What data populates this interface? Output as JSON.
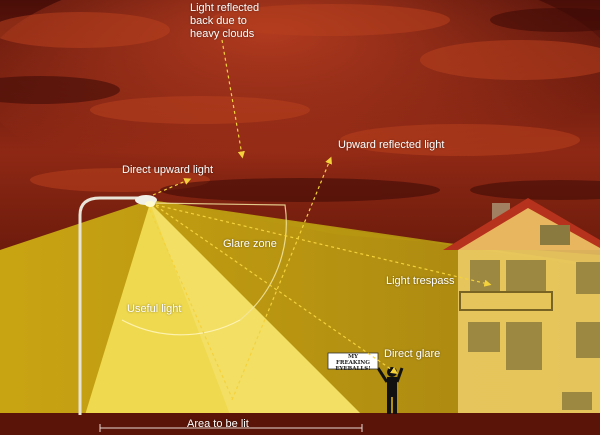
{
  "labels": {
    "reflected_back": "Light reflected\nback due to\nheavy clouds",
    "direct_upward": "Direct upward light",
    "upward_reflected": "Upward reflected light",
    "glare_zone": "Glare zone",
    "useful_light": "Useful light",
    "light_trespass": "Light trespass",
    "direct_glare": "Direct glare",
    "area_to_be_lit": "Area to be lit",
    "sign_text": "MY FREAKING\nEYEBALLS!"
  },
  "colors": {
    "sky_dark": "#3a0c08",
    "sky_red": "#a8321a",
    "ground": "#5a1508",
    "ambient_glow": "#c9a412",
    "useful_beam": "#efd94e",
    "house_wall": "#f3d36d",
    "roof": "#b7321c",
    "arrow": "#f4d23c",
    "label_text": "#ffffff"
  }
}
